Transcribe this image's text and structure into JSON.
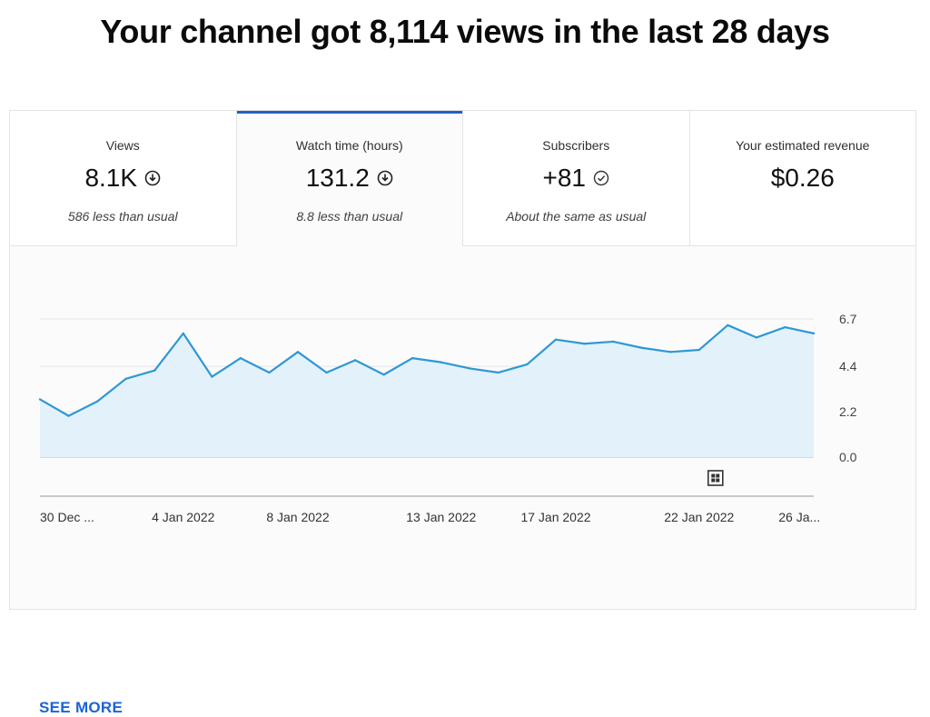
{
  "headline": "Your channel got 8,114 views in the last 28 days",
  "cards": [
    {
      "label": "Views",
      "value": "8.1K",
      "icon": "down-circle-icon",
      "note": "586 less than usual",
      "active": false
    },
    {
      "label": "Watch time (hours)",
      "value": "131.2",
      "icon": "down-circle-icon",
      "note": "8.8 less than usual",
      "active": true
    },
    {
      "label": "Subscribers",
      "value": "+81",
      "icon": "check-circle-icon",
      "note": "About the same as usual",
      "active": false
    },
    {
      "label": "Your estimated revenue",
      "value": "$0.26",
      "icon": "",
      "note": "",
      "active": false
    }
  ],
  "accent_color": "#1f5fc8",
  "chart_data": {
    "type": "area",
    "series": [
      {
        "values": [
          2.8,
          2.0,
          2.7,
          3.8,
          4.2,
          6.0,
          3.9,
          4.8,
          4.1,
          5.1,
          4.1,
          4.7,
          4.0,
          4.8,
          4.6,
          4.3,
          4.1,
          4.5,
          5.7,
          5.5,
          5.6,
          5.3,
          5.1,
          5.2,
          6.4,
          5.8,
          6.3,
          6.0
        ]
      }
    ],
    "x_tick_labels": [
      "30 Dec ...",
      "4 Jan 2022",
      "8 Jan 2022",
      "13 Jan 2022",
      "17 Jan 2022",
      "22 Jan 2022",
      "26 Ja..."
    ],
    "x_tick_indices": [
      0,
      5,
      9,
      14,
      18,
      23,
      26.5
    ],
    "y_tick_labels": [
      "6.7",
      "4.4",
      "2.2",
      "0.0"
    ],
    "y_tick_values": [
      6.7,
      4.4,
      2.2,
      0.0
    ],
    "ylim": [
      0,
      6.7
    ],
    "grid": true,
    "line_color": "#2f98d4",
    "fill_color": "#e3f1fb",
    "marker_icon": "grid-badge-icon"
  },
  "see_more": "SEE MORE"
}
